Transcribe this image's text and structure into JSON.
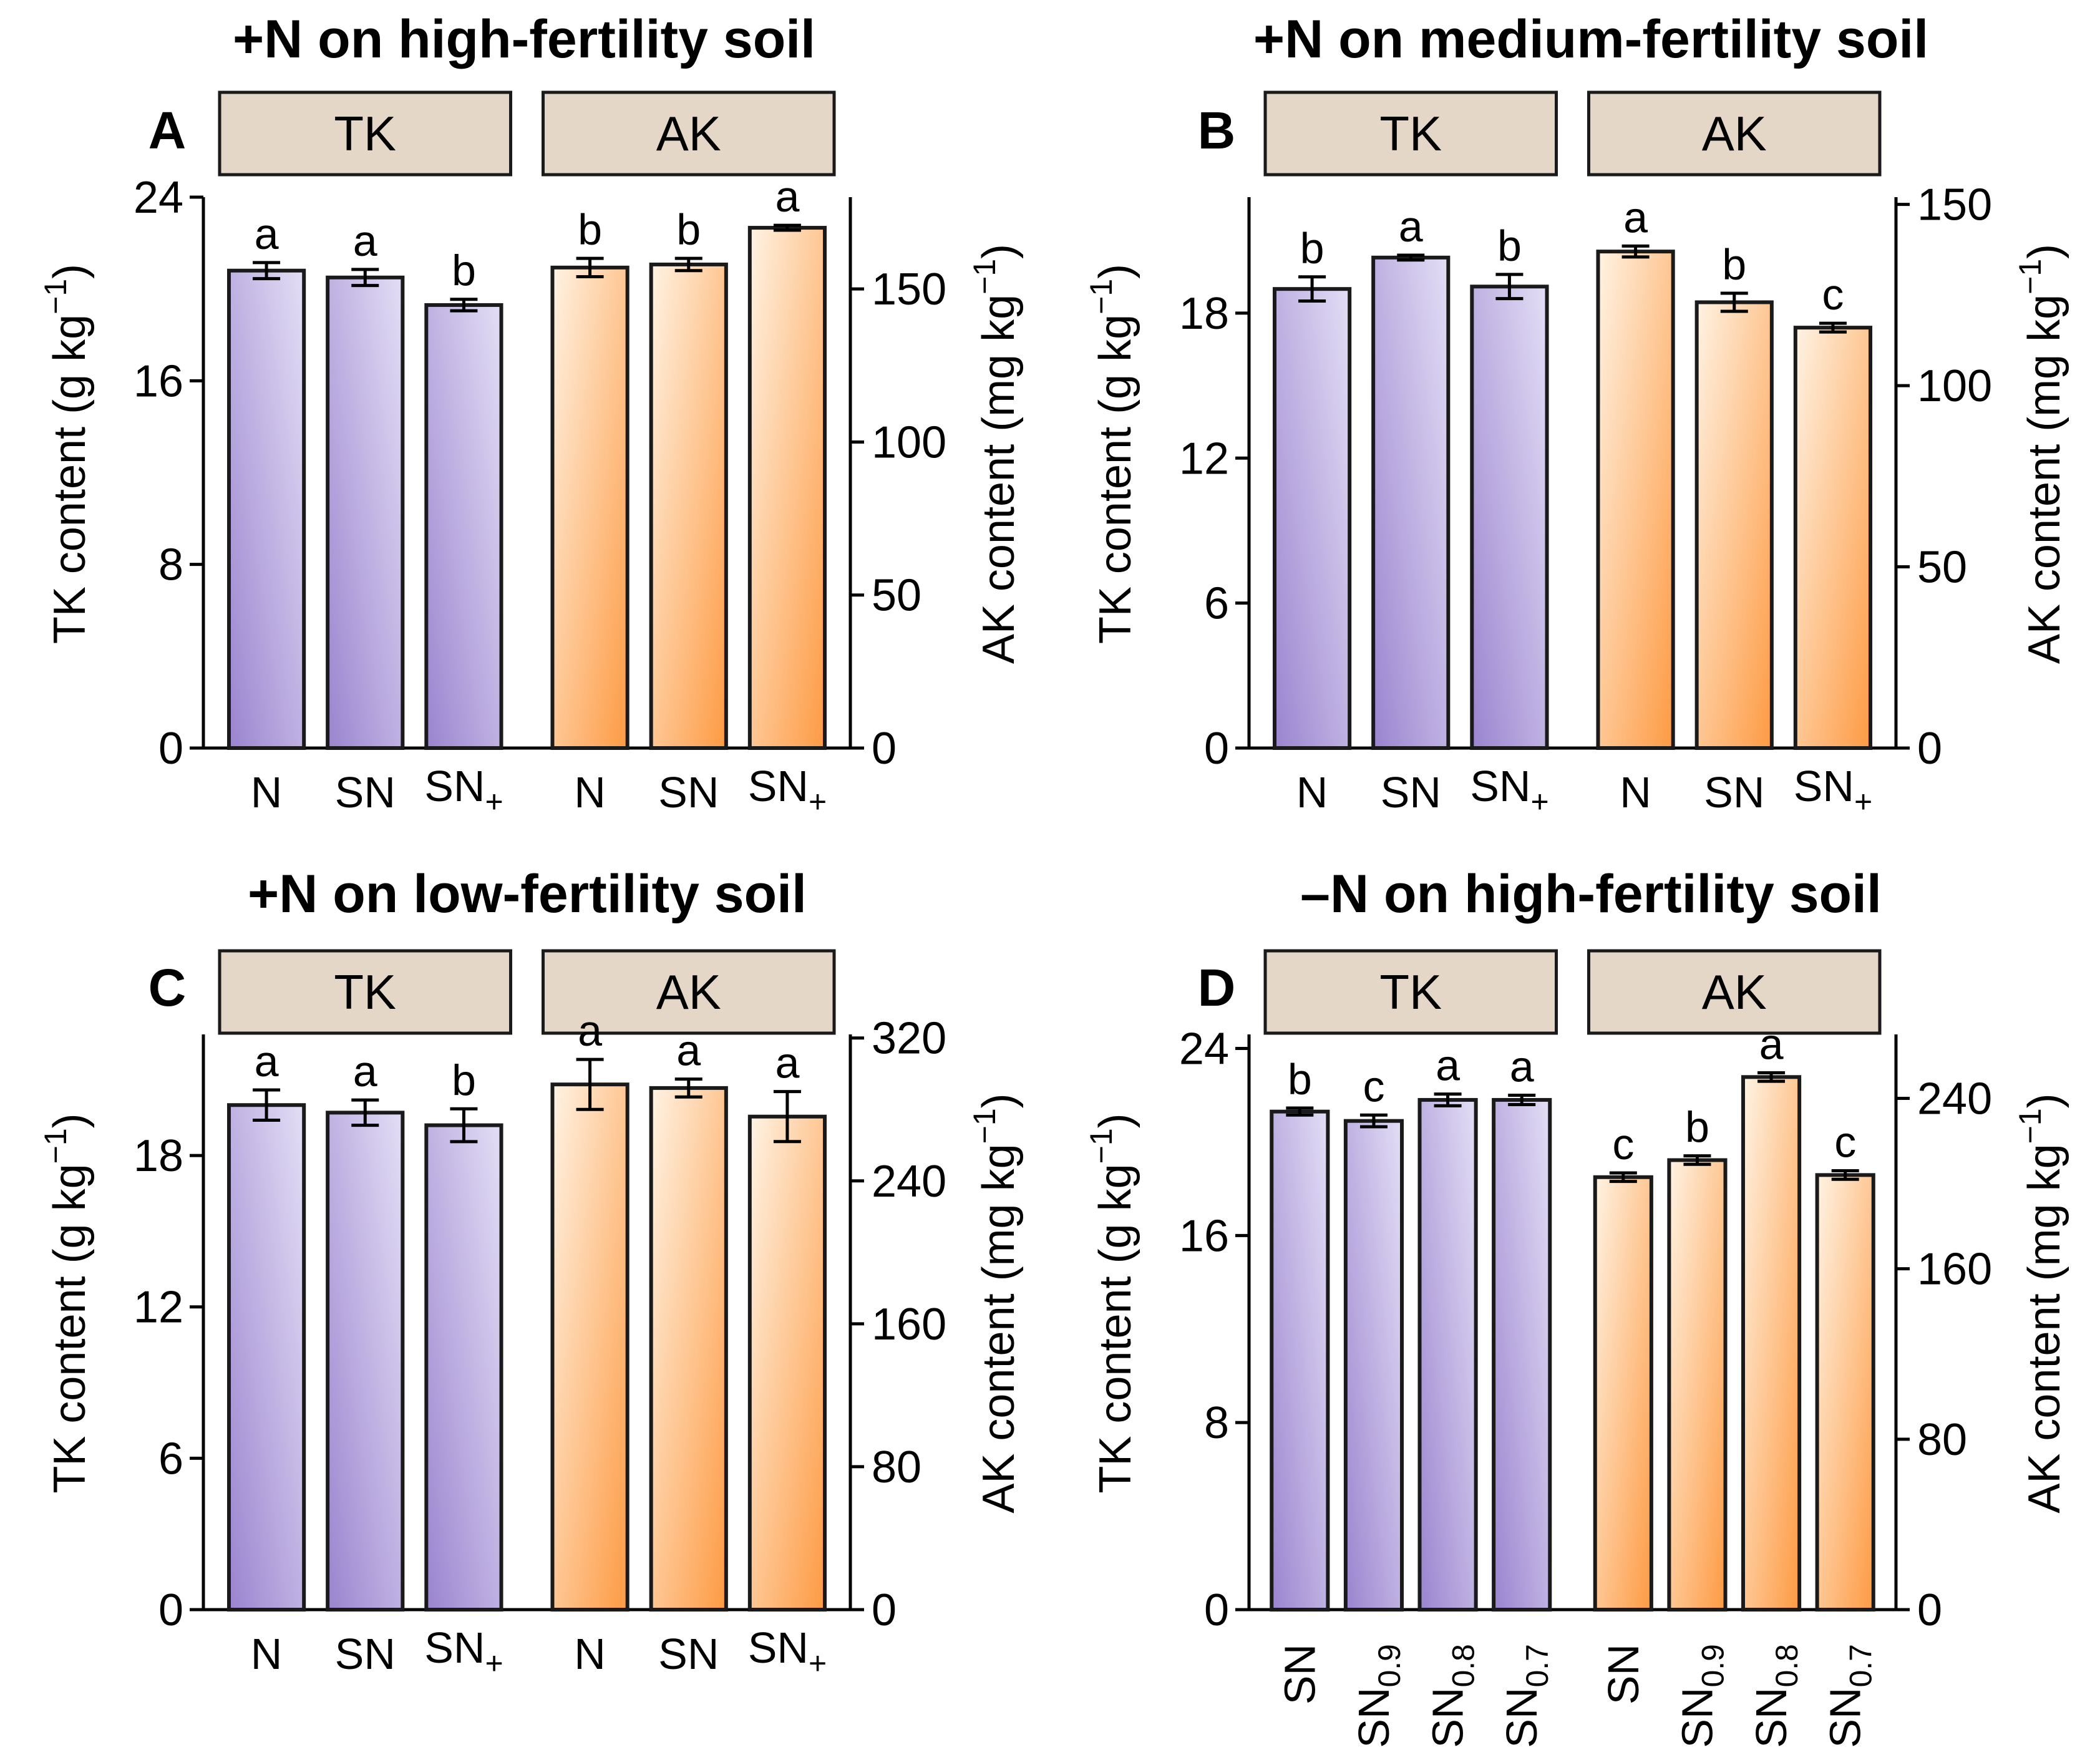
{
  "chart_data": [
    {
      "type": "bar",
      "panel": "A",
      "title": "+N on high-fertility soil",
      "left_axis": {
        "label": "TK content (g kg⁻¹)",
        "ylim": [
          0,
          24
        ],
        "ticks": [
          0,
          8,
          16,
          24
        ]
      },
      "right_axis": {
        "label": "AK content (mg kg⁻¹)",
        "ylim": [
          0,
          180
        ],
        "ticks": [
          0,
          50,
          100,
          150
        ]
      },
      "groups": [
        {
          "strip": "TK",
          "axis": "left",
          "color": "purple",
          "bars": [
            {
              "category": "N",
              "sub": "",
              "value": 20.8,
              "err": 0.35,
              "letter": "a"
            },
            {
              "category": "SN",
              "sub": "",
              "value": 20.5,
              "err": 0.35,
              "letter": "a"
            },
            {
              "category": "SN",
              "sub": "+",
              "value": 19.3,
              "err": 0.25,
              "letter": "b"
            }
          ]
        },
        {
          "strip": "AK",
          "axis": "right",
          "color": "orange",
          "bars": [
            {
              "category": "N",
              "sub": "",
              "value": 157,
              "err": 3,
              "letter": "b"
            },
            {
              "category": "SN",
              "sub": "",
              "value": 158,
              "err": 2,
              "letter": "b"
            },
            {
              "category": "SN",
              "sub": "+",
              "value": 170,
              "err": 0.8,
              "letter": "a"
            }
          ]
        }
      ]
    },
    {
      "type": "bar",
      "panel": "B",
      "title": "+N on medium-fertility soil",
      "left_axis": {
        "label": "TK content (g kg⁻¹)",
        "ylim": [
          0,
          22.8
        ],
        "ticks": [
          0,
          6,
          12,
          18
        ]
      },
      "right_axis": {
        "label": "AK content (mg kg⁻¹)",
        "ylim": [
          0,
          152
        ],
        "ticks": [
          0,
          50,
          100,
          150
        ]
      },
      "groups": [
        {
          "strip": "TK",
          "axis": "left",
          "color": "purple",
          "bars": [
            {
              "category": "N",
              "sub": "",
              "value": 19.0,
              "err": 0.5,
              "letter": "b"
            },
            {
              "category": "SN",
              "sub": "",
              "value": 20.3,
              "err": 0.1,
              "letter": "a"
            },
            {
              "category": "SN",
              "sub": "+",
              "value": 19.1,
              "err": 0.5,
              "letter": "b"
            }
          ]
        },
        {
          "strip": "AK",
          "axis": "right",
          "color": "orange",
          "bars": [
            {
              "category": "N",
              "sub": "",
              "value": 137,
              "err": 1.5,
              "letter": "a"
            },
            {
              "category": "SN",
              "sub": "",
              "value": 123,
              "err": 2.5,
              "letter": "b"
            },
            {
              "category": "SN",
              "sub": "+",
              "value": 116,
              "err": 1.2,
              "letter": "c"
            }
          ]
        }
      ]
    },
    {
      "type": "bar",
      "panel": "C",
      "title": "+N on low-fertility soil",
      "left_axis": {
        "label": "TK content (g kg⁻¹)",
        "ylim": [
          0,
          22.8
        ],
        "ticks": [
          0,
          6,
          12,
          18
        ]
      },
      "right_axis": {
        "label": "AK content (mg kg⁻¹)",
        "ylim": [
          0,
          322
        ],
        "ticks": [
          0,
          80,
          160,
          240,
          320
        ]
      },
      "groups": [
        {
          "strip": "TK",
          "axis": "left",
          "color": "purple",
          "bars": [
            {
              "category": "N",
              "sub": "",
              "value": 20.0,
              "err": 0.6,
              "letter": "a"
            },
            {
              "category": "SN",
              "sub": "",
              "value": 19.7,
              "err": 0.5,
              "letter": "a"
            },
            {
              "category": "SN",
              "sub": "+",
              "value": 19.2,
              "err": 0.65,
              "letter": "b"
            }
          ]
        },
        {
          "strip": "AK",
          "axis": "right",
          "color": "orange",
          "bars": [
            {
              "category": "N",
              "sub": "",
              "value": 294,
              "err": 14,
              "letter": "a"
            },
            {
              "category": "SN",
              "sub": "",
              "value": 292,
              "err": 5,
              "letter": "a"
            },
            {
              "category": "SN",
              "sub": "+",
              "value": 276,
              "err": 14,
              "letter": "a"
            }
          ]
        }
      ]
    },
    {
      "type": "bar",
      "panel": "D",
      "title": "–N on high-fertility soil",
      "rotated_labels": true,
      "left_axis": {
        "label": "TK content (g kg⁻¹)",
        "ylim": [
          0,
          24.6
        ],
        "ticks": [
          0,
          8,
          16,
          24
        ]
      },
      "right_axis": {
        "label": "AK content (mg kg⁻¹)",
        "ylim": [
          0,
          270
        ],
        "ticks": [
          0,
          80,
          160,
          240
        ]
      },
      "groups": [
        {
          "strip": "TK",
          "axis": "left",
          "color": "purple",
          "bars": [
            {
              "category": "SN",
              "sub": "",
              "value": 21.3,
              "err": 0.15,
              "letter": "b"
            },
            {
              "category": "SN",
              "sub": "0.9",
              "value": 20.9,
              "err": 0.25,
              "letter": "c"
            },
            {
              "category": "SN",
              "sub": "0.8",
              "value": 21.8,
              "err": 0.25,
              "letter": "a"
            },
            {
              "category": "SN",
              "sub": "0.7",
              "value": 21.8,
              "err": 0.2,
              "letter": "a"
            }
          ]
        },
        {
          "strip": "AK",
          "axis": "right",
          "color": "orange",
          "bars": [
            {
              "category": "SN",
              "sub": "",
              "value": 203,
              "err": 2,
              "letter": "c"
            },
            {
              "category": "SN",
              "sub": "0.9",
              "value": 211,
              "err": 2,
              "letter": "b"
            },
            {
              "category": "SN",
              "sub": "0.8",
              "value": 250,
              "err": 2,
              "letter": "a"
            },
            {
              "category": "SN",
              "sub": "0.7",
              "value": 204,
              "err": 2,
              "letter": "c"
            }
          ]
        }
      ]
    }
  ],
  "colors": {
    "purple_light": "#e0dbf3",
    "purple_dark": "#9d87d0",
    "orange_light": "#fff1e0",
    "orange_dark": "#fd9c45",
    "strip_fill": "#e4d7c8"
  }
}
